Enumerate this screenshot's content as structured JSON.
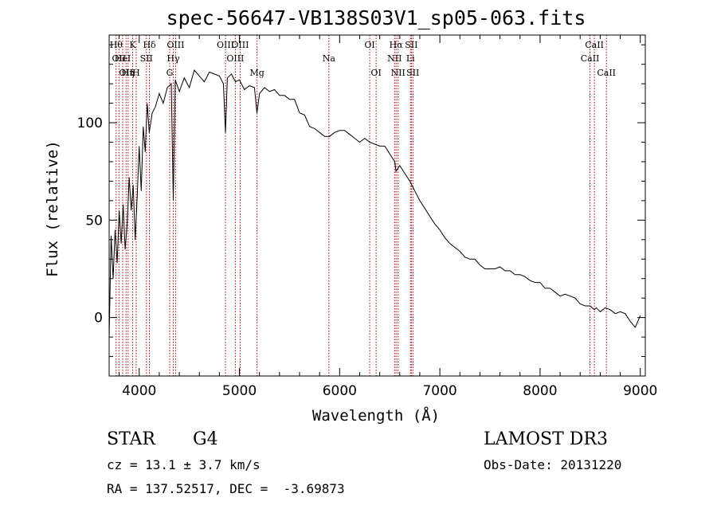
{
  "chart_data": {
    "type": "line",
    "title": "spec-56647-VB138S03V1_sp05-063.fits",
    "xlabel": "Wavelength (Å)",
    "ylabel": "Flux (relative)",
    "xlim": [
      3700,
      9050
    ],
    "ylim": [
      -30,
      145
    ],
    "xticks": [
      4000,
      5000,
      6000,
      7000,
      8000,
      9000
    ],
    "yticks": [
      0,
      50,
      100
    ],
    "series": [
      {
        "name": "flux",
        "x": [
          3700,
          3720,
          3740,
          3760,
          3780,
          3800,
          3820,
          3840,
          3860,
          3880,
          3900,
          3920,
          3940,
          3960,
          3980,
          4000,
          4020,
          4040,
          4060,
          4080,
          4100,
          4130,
          4160,
          4200,
          4240,
          4280,
          4320,
          4340,
          4360,
          4400,
          4450,
          4500,
          4550,
          4600,
          4650,
          4700,
          4750,
          4800,
          4840,
          4861,
          4880,
          4920,
          4960,
          5000,
          5050,
          5100,
          5150,
          5175,
          5200,
          5250,
          5300,
          5350,
          5400,
          5450,
          5500,
          5550,
          5600,
          5650,
          5700,
          5750,
          5800,
          5850,
          5900,
          5950,
          6000,
          6050,
          6100,
          6150,
          6200,
          6250,
          6300,
          6350,
          6400,
          6450,
          6500,
          6550,
          6563,
          6600,
          6650,
          6700,
          6750,
          6800,
          6850,
          6900,
          6950,
          7000,
          7050,
          7100,
          7150,
          7200,
          7250,
          7300,
          7350,
          7400,
          7450,
          7500,
          7550,
          7600,
          7650,
          7700,
          7750,
          7800,
          7850,
          7900,
          7950,
          8000,
          8050,
          8100,
          8150,
          8200,
          8250,
          8300,
          8350,
          8400,
          8450,
          8500,
          8542,
          8560,
          8600,
          8650,
          8700,
          8750,
          8800,
          8850,
          8900,
          8950,
          9000
        ],
        "y": [
          -10,
          42,
          20,
          45,
          28,
          55,
          38,
          58,
          35,
          48,
          72,
          55,
          68,
          40,
          62,
          88,
          65,
          98,
          85,
          110,
          95,
          105,
          108,
          115,
          110,
          118,
          120,
          60,
          122,
          116,
          123,
          118,
          127,
          124,
          121,
          126,
          125,
          124,
          120,
          95,
          123,
          125,
          121,
          122,
          117,
          119,
          118,
          105,
          115,
          118,
          116,
          117,
          114,
          114,
          112,
          112,
          105,
          104,
          98,
          97,
          95,
          93,
          93,
          95,
          96,
          96,
          94,
          92,
          90,
          92,
          90,
          89,
          88,
          88,
          84,
          80,
          75,
          78,
          74,
          70,
          65,
          60,
          56,
          52,
          48,
          45,
          41,
          38,
          36,
          34,
          31,
          30,
          30,
          27,
          25,
          25,
          25,
          26,
          24,
          24,
          22,
          22,
          21,
          19,
          18,
          18,
          15,
          15,
          13,
          11,
          12,
          11,
          10,
          7,
          6,
          6,
          4,
          5,
          3,
          5,
          4,
          2,
          3,
          2,
          -2,
          -5,
          1
        ]
      }
    ],
    "lines": [
      {
        "x": 3770,
        "label": "Hθ",
        "row": 0
      },
      {
        "x": 3798,
        "label": "OII",
        "row": 1
      },
      {
        "x": 3835,
        "label": "HeI",
        "row": 1
      },
      {
        "x": 3869,
        "label": "OII",
        "row": 2
      },
      {
        "x": 3889,
        "label": "Hη",
        "row": 2
      },
      {
        "x": 3934,
        "label": "K",
        "row": 0
      },
      {
        "x": 3970,
        "label": "H",
        "row": 2
      },
      {
        "x": 4072,
        "label": "SII",
        "row": 1
      },
      {
        "x": 4102,
        "label": "Hδ",
        "row": 0
      },
      {
        "x": 4304,
        "label": "G",
        "row": 2
      },
      {
        "x": 4340,
        "label": "Hγ",
        "row": 1
      },
      {
        "x": 4363,
        "label": "OIII",
        "row": 0
      },
      {
        "x": 4861,
        "label": "OIII",
        "row": 0
      },
      {
        "x": 4959,
        "label": "OIII",
        "row": 1
      },
      {
        "x": 5007,
        "label": "OIII",
        "row": 0
      },
      {
        "x": 5176,
        "label": "Mg",
        "row": 2
      },
      {
        "x": 5893,
        "label": "Na",
        "row": 1
      },
      {
        "x": 6300,
        "label": "OI",
        "row": 0
      },
      {
        "x": 6364,
        "label": "OI",
        "row": 2
      },
      {
        "x": 6548,
        "label": "NII",
        "row": 1
      },
      {
        "x": 6563,
        "label": "Hα",
        "row": 0
      },
      {
        "x": 6583,
        "label": "NII",
        "row": 2
      },
      {
        "x": 6707,
        "label": "Li",
        "row": 1
      },
      {
        "x": 6716,
        "label": "SII",
        "row": 0
      },
      {
        "x": 6731,
        "label": "SII",
        "row": 2
      },
      {
        "x": 8498,
        "label": "CaII",
        "row": 1
      },
      {
        "x": 8542,
        "label": "CaII",
        "row": 0
      },
      {
        "x": 8662,
        "label": "CaII",
        "row": 2
      }
    ]
  },
  "info": {
    "class_label": "STAR",
    "subclass": "G4",
    "cz": "cz = 13.1 ± 3.7 km/s",
    "coords": "RA = 137.52517, DEC =  -3.69873",
    "survey": "LAMOST DR3",
    "obs_date": "Obs-Date: 20131220"
  },
  "colors": {
    "spectrum": "#000000",
    "line_markers": "#b00000",
    "axes": "#000000"
  }
}
